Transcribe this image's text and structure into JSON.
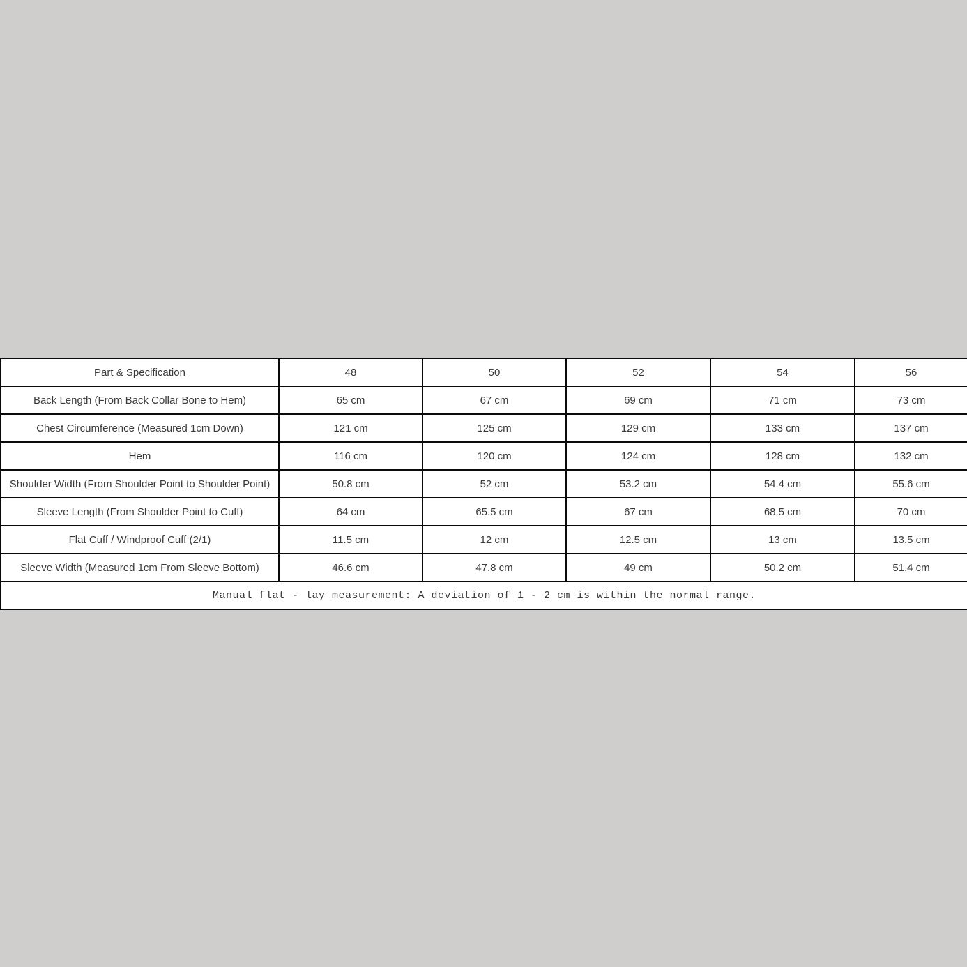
{
  "page": {
    "background_color": "#d0cdcd",
    "table_background": "#ffffff",
    "grid_color": "#0a0a0a",
    "cell_text_color": "#3a3a3a",
    "footer_text_color": "#000000"
  },
  "chart_data": {
    "type": "table",
    "columns": [
      "Part & Specification",
      "48",
      "50",
      "52",
      "54",
      "56"
    ],
    "rows": [
      {
        "label": "Back Length (From Back Collar Bone to Hem)",
        "values": [
          "65 cm",
          "67 cm",
          "69 cm",
          "71 cm",
          "73 cm"
        ]
      },
      {
        "label": "Chest Circumference (Measured 1cm Down)",
        "values": [
          "121 cm",
          "125 cm",
          "129 cm",
          "133 cm",
          "137 cm"
        ]
      },
      {
        "label": "Hem",
        "values": [
          "116 cm",
          "120 cm",
          "124 cm",
          "128 cm",
          "132 cm"
        ]
      },
      {
        "label": "Shoulder Width (From Shoulder Point to Shoulder Point)",
        "values": [
          "50.8 cm",
          "52 cm",
          "53.2 cm",
          "54.4 cm",
          "55.6 cm"
        ]
      },
      {
        "label": "Sleeve Length (From Shoulder Point to Cuff)",
        "values": [
          "64 cm",
          "65.5 cm",
          "67 cm",
          "68.5 cm",
          "70 cm"
        ]
      },
      {
        "label": "Flat Cuff / Windproof Cuff (2/1)",
        "values": [
          "11.5 cm",
          "12 cm",
          "12.5 cm",
          "13 cm",
          "13.5 cm"
        ]
      },
      {
        "label": "Sleeve Width (Measured 1cm From Sleeve Bottom)",
        "values": [
          "46.6 cm",
          "47.8 cm",
          "49 cm",
          "50.2 cm",
          "51.4 cm"
        ]
      }
    ],
    "footer_note": "Manual flat - lay measurement: A deviation of 1 - 2 cm is within the normal range.",
    "layout_hints": {
      "grid": "on",
      "header_position": "top-row",
      "note_position": "bottom-row-colspan"
    }
  }
}
